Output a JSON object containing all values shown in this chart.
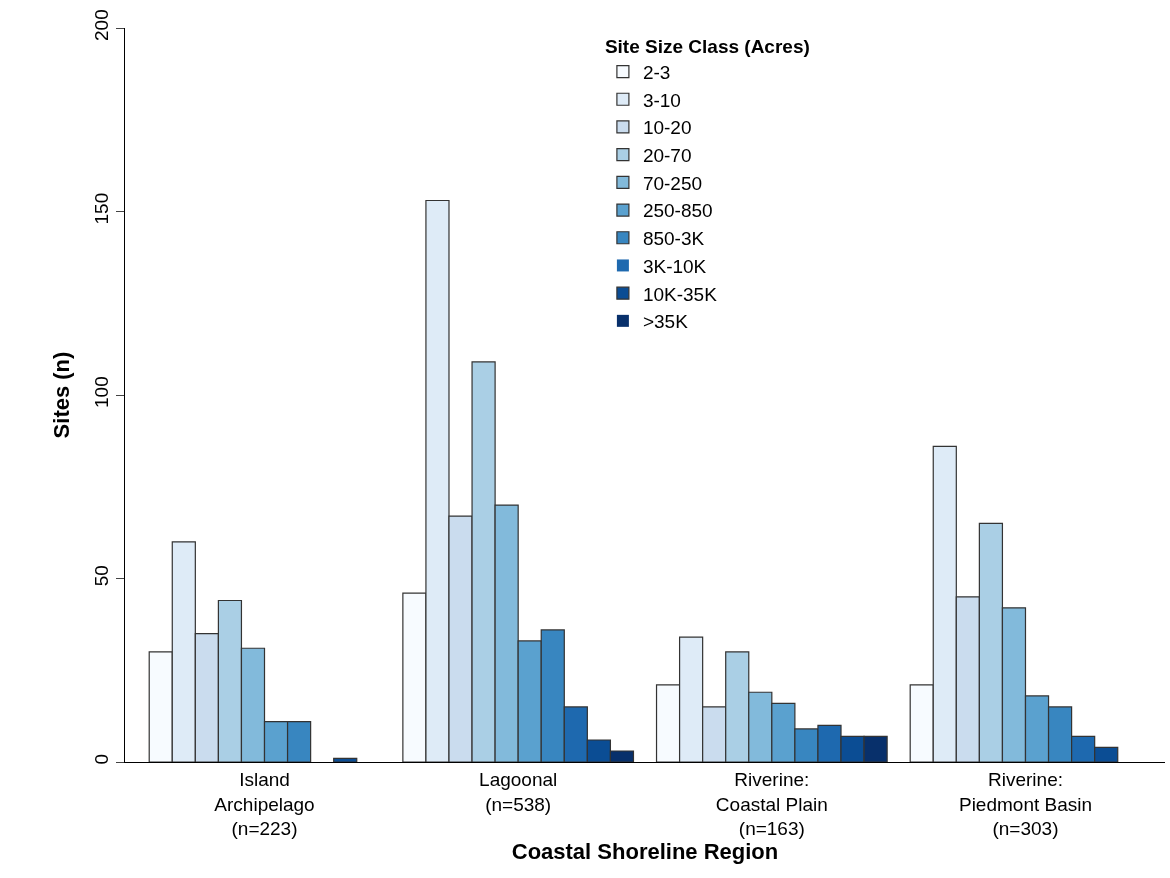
{
  "chart_data": {
    "type": "bar",
    "xlabel": "Coastal Shoreline Region",
    "ylabel": "Sites (n)",
    "legend_title": "Site Size Class (Acres)",
    "categories": [
      "Island\nArchipelago\n(n=223)",
      "Lagoonal\n(n=538)",
      "Riverine:\nCoastal Plain\n(n=163)",
      "Riverine:\nPiedmont Basin\n(n=303)"
    ],
    "series": [
      {
        "name": "2-3",
        "color": "#f7fbff",
        "values": [
          30,
          46,
          21,
          21
        ]
      },
      {
        "name": "3-10",
        "color": "#deebf7",
        "values": [
          60,
          153,
          34,
          86
        ]
      },
      {
        "name": "10-20",
        "color": "#cadcee",
        "values": [
          35,
          67,
          15,
          45
        ]
      },
      {
        "name": "20-70",
        "color": "#aacfe5",
        "values": [
          44,
          109,
          30,
          65
        ]
      },
      {
        "name": "70-250",
        "color": "#82badb",
        "values": [
          31,
          70,
          19,
          42
        ]
      },
      {
        "name": "250-850",
        "color": "#5aa1cf",
        "values": [
          11,
          33,
          16,
          18
        ]
      },
      {
        "name": "850-3K",
        "color": "#3886c0",
        "values": [
          11,
          36,
          9,
          15
        ]
      },
      {
        "name": "3K-10K",
        "color": "#1e69af",
        "values": [
          0,
          15,
          10,
          7
        ]
      },
      {
        "name": "10K-35K",
        "color": "#0b4d94",
        "values": [
          1,
          6,
          7,
          4
        ]
      },
      {
        "name": ">35K",
        "color": "#08306b",
        "values": [
          0,
          3,
          7,
          0
        ]
      }
    ],
    "ylim": [
      0,
      200
    ],
    "yticks": [
      0,
      50,
      100,
      150,
      200
    ],
    "legend": "top"
  }
}
